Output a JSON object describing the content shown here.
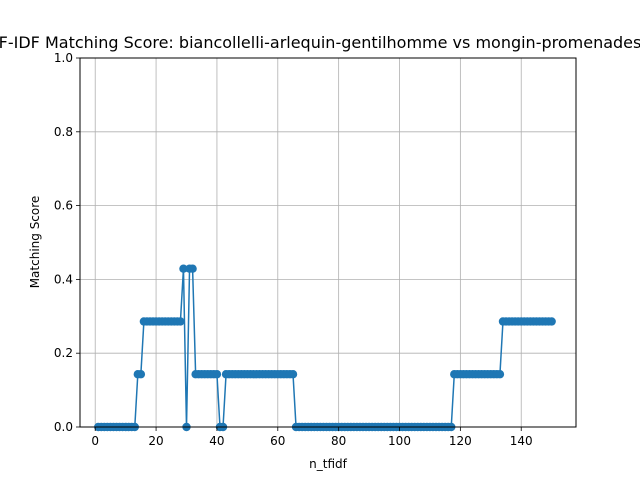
{
  "chart_data": {
    "type": "line",
    "title": "TF-IDF Matching Score: biancollelli-arlequin-gentilhomme vs mongin-promenades-de",
    "xlabel": "n_tfidf",
    "ylabel": "Matching Score",
    "xlim": [
      -5,
      158
    ],
    "ylim": [
      0,
      1
    ],
    "xticks": [
      0,
      20,
      40,
      60,
      80,
      100,
      120,
      140
    ],
    "yticks": [
      0.0,
      0.2,
      0.4,
      0.6,
      0.8,
      1.0
    ],
    "xtick_labels": [
      "0",
      "20",
      "40",
      "60",
      "80",
      "100",
      "120",
      "140"
    ],
    "ytick_labels": [
      "0.0",
      "0.2",
      "0.4",
      "0.6",
      "0.8",
      "1.0"
    ],
    "grid": true,
    "color": "#1f77b4",
    "segments": [
      {
        "from": 1,
        "to": 13,
        "value": 0.0
      },
      {
        "from": 14,
        "to": 15,
        "value": 0.143
      },
      {
        "from": 16,
        "to": 28,
        "value": 0.286
      },
      {
        "from": 29,
        "to": 29,
        "value": 0.429
      },
      {
        "from": 30,
        "to": 30,
        "value": 0.0
      },
      {
        "from": 31,
        "to": 32,
        "value": 0.429
      },
      {
        "from": 33,
        "to": 40,
        "value": 0.143
      },
      {
        "from": 41,
        "to": 42,
        "value": 0.0
      },
      {
        "from": 43,
        "to": 65,
        "value": 0.143
      },
      {
        "from": 66,
        "to": 117,
        "value": 0.0
      },
      {
        "from": 118,
        "to": 133,
        "value": 0.143
      },
      {
        "from": 134,
        "to": 150,
        "value": 0.286
      }
    ]
  }
}
